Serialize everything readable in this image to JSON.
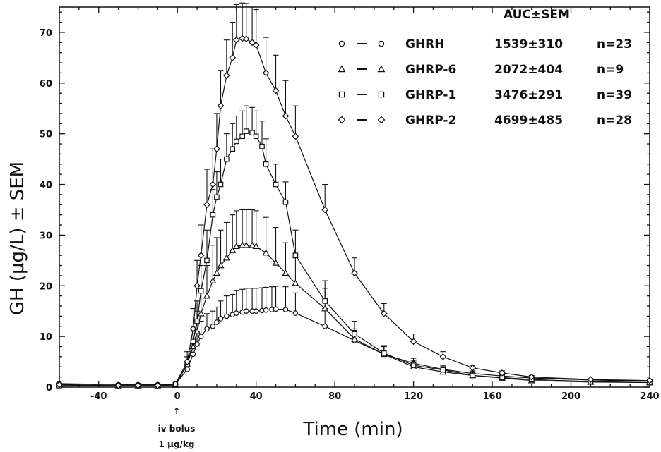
{
  "chart_data": {
    "type": "line",
    "xlabel": "Time (min)",
    "ylabel": "GH (μg/L) ± SEM",
    "xlim": [
      -60,
      240
    ],
    "ylim": [
      0,
      75
    ],
    "xticks": [
      -40,
      0,
      40,
      80,
      120,
      160,
      200,
      240
    ],
    "yticks": [
      0,
      10,
      20,
      30,
      40,
      50,
      60,
      70
    ],
    "legend_header": "AUC±SEM",
    "legend_position": "top-right",
    "annotation": {
      "arrow": "↑",
      "line1": "iv bolus",
      "line2": "1 μg/kg",
      "x": 0
    },
    "series": [
      {
        "name": "GHRH",
        "marker": "circle",
        "auc": "1539±310",
        "n": "n=23",
        "x": [
          -60,
          -30,
          -20,
          -10,
          -1,
          5,
          8,
          10,
          12,
          15,
          18,
          20,
          22,
          25,
          28,
          30,
          33,
          35,
          38,
          40,
          43,
          45,
          48,
          50,
          55,
          60,
          75,
          90,
          105,
          120,
          135,
          150,
          165,
          180,
          210,
          240
        ],
        "y": [
          0.7,
          0.5,
          0.5,
          0.5,
          0.6,
          3.5,
          6.5,
          8.5,
          10,
          11.5,
          12,
          12.8,
          13.5,
          14,
          14.3,
          14.6,
          14.8,
          15,
          15,
          15,
          15.1,
          15.2,
          15.3,
          15.4,
          15.3,
          14.6,
          12,
          9.2,
          6.5,
          4.7,
          3.5,
          2.7,
          2.2,
          1.8,
          1.4,
          1.2
        ],
        "err": [
          0,
          0,
          0,
          0,
          0,
          1,
          2,
          2.5,
          3,
          3,
          3,
          3,
          3.5,
          4,
          4,
          4.5,
          4.5,
          4.5,
          4.5,
          4.5,
          4.5,
          4.5,
          4.5,
          4.5,
          4.5,
          4,
          3.5,
          2,
          1.5,
          1,
          0.5,
          0.5,
          0.3,
          0.3,
          0.2,
          0.2
        ]
      },
      {
        "name": "GHRP-6",
        "marker": "triangle",
        "auc": "2072±404",
        "n": "n=9",
        "x": [
          -60,
          -30,
          -20,
          -10,
          -1,
          5,
          8,
          10,
          12,
          15,
          18,
          20,
          22,
          25,
          28,
          30,
          33,
          35,
          38,
          40,
          45,
          50,
          55,
          60,
          75,
          90,
          105,
          120,
          135,
          150,
          165,
          180,
          210,
          240
        ],
        "y": [
          0.5,
          0.3,
          0.3,
          0.3,
          0.4,
          4.5,
          8,
          11,
          14.5,
          18,
          21,
          22.5,
          24,
          25.5,
          27,
          27.8,
          28,
          28,
          28,
          27.8,
          26.5,
          24.5,
          22.5,
          20.5,
          15.5,
          9.5,
          6.5,
          4,
          3,
          2.3,
          1.8,
          1.3,
          1,
          0.9
        ],
        "err": [
          0,
          0,
          0,
          0,
          0,
          1.5,
          3,
          4,
          5,
          6,
          7,
          7,
          7,
          7,
          7,
          7,
          7,
          7,
          7,
          7,
          7,
          7,
          6,
          5,
          4,
          2,
          1.5,
          1,
          0.7,
          0.5,
          0.3,
          0.3,
          0.2,
          0.2
        ]
      },
      {
        "name": "GHRP-1",
        "marker": "square",
        "auc": "3476±291",
        "n": "n=39",
        "x": [
          -60,
          -30,
          -20,
          -10,
          -1,
          5,
          8,
          10,
          12,
          15,
          18,
          20,
          22,
          25,
          28,
          30,
          33,
          35,
          38,
          40,
          43,
          45,
          50,
          55,
          60,
          75,
          90,
          105,
          120,
          135,
          150,
          165,
          180,
          210,
          240
        ],
        "y": [
          0.3,
          0.3,
          0.3,
          0.3,
          0.5,
          4.5,
          9,
          13,
          19,
          25,
          34,
          37.5,
          40,
          45,
          47,
          48.5,
          49.5,
          50.5,
          50.2,
          49.5,
          47.5,
          44,
          40,
          36.5,
          26,
          17,
          10.5,
          6.7,
          4.3,
          3.4,
          2.3,
          1.9,
          1.5,
          1.1,
          0.9
        ],
        "err": [
          0,
          0,
          0,
          0,
          0,
          1.5,
          3,
          4,
          5,
          6,
          5,
          5,
          5,
          5,
          5,
          5,
          5,
          5,
          5,
          5,
          5,
          5,
          4,
          4,
          5,
          4,
          2.5,
          1.5,
          1,
          0.8,
          0.5,
          0.3,
          0.3,
          0.2,
          0.2
        ]
      },
      {
        "name": "GHRP-2",
        "marker": "diamond",
        "auc": "4699±485",
        "n": "n=28",
        "x": [
          -60,
          -30,
          -20,
          -10,
          -1,
          5,
          8,
          10,
          12,
          15,
          18,
          20,
          22,
          25,
          28,
          30,
          33,
          35,
          38,
          40,
          45,
          50,
          55,
          60,
          75,
          90,
          105,
          120,
          135,
          150,
          165,
          180,
          210,
          240
        ],
        "y": [
          0.5,
          0.3,
          0.3,
          0.3,
          0.6,
          5,
          11.5,
          20,
          26,
          36,
          40,
          47,
          55.5,
          61.5,
          65,
          68.5,
          68.8,
          68.7,
          68,
          67.5,
          62,
          58.5,
          53.5,
          49.5,
          35,
          22.5,
          14.5,
          9,
          6,
          3.8,
          2.8,
          2,
          1.5,
          1.3
        ],
        "err": [
          0,
          0,
          0,
          0,
          0,
          2,
          4,
          5,
          6,
          7,
          7,
          7,
          7,
          7,
          7,
          7,
          7,
          7,
          7,
          7,
          7,
          7,
          7,
          6,
          5,
          3,
          2,
          1.5,
          1,
          0.5,
          0.4,
          0.3,
          0.2,
          0.2
        ]
      }
    ]
  }
}
